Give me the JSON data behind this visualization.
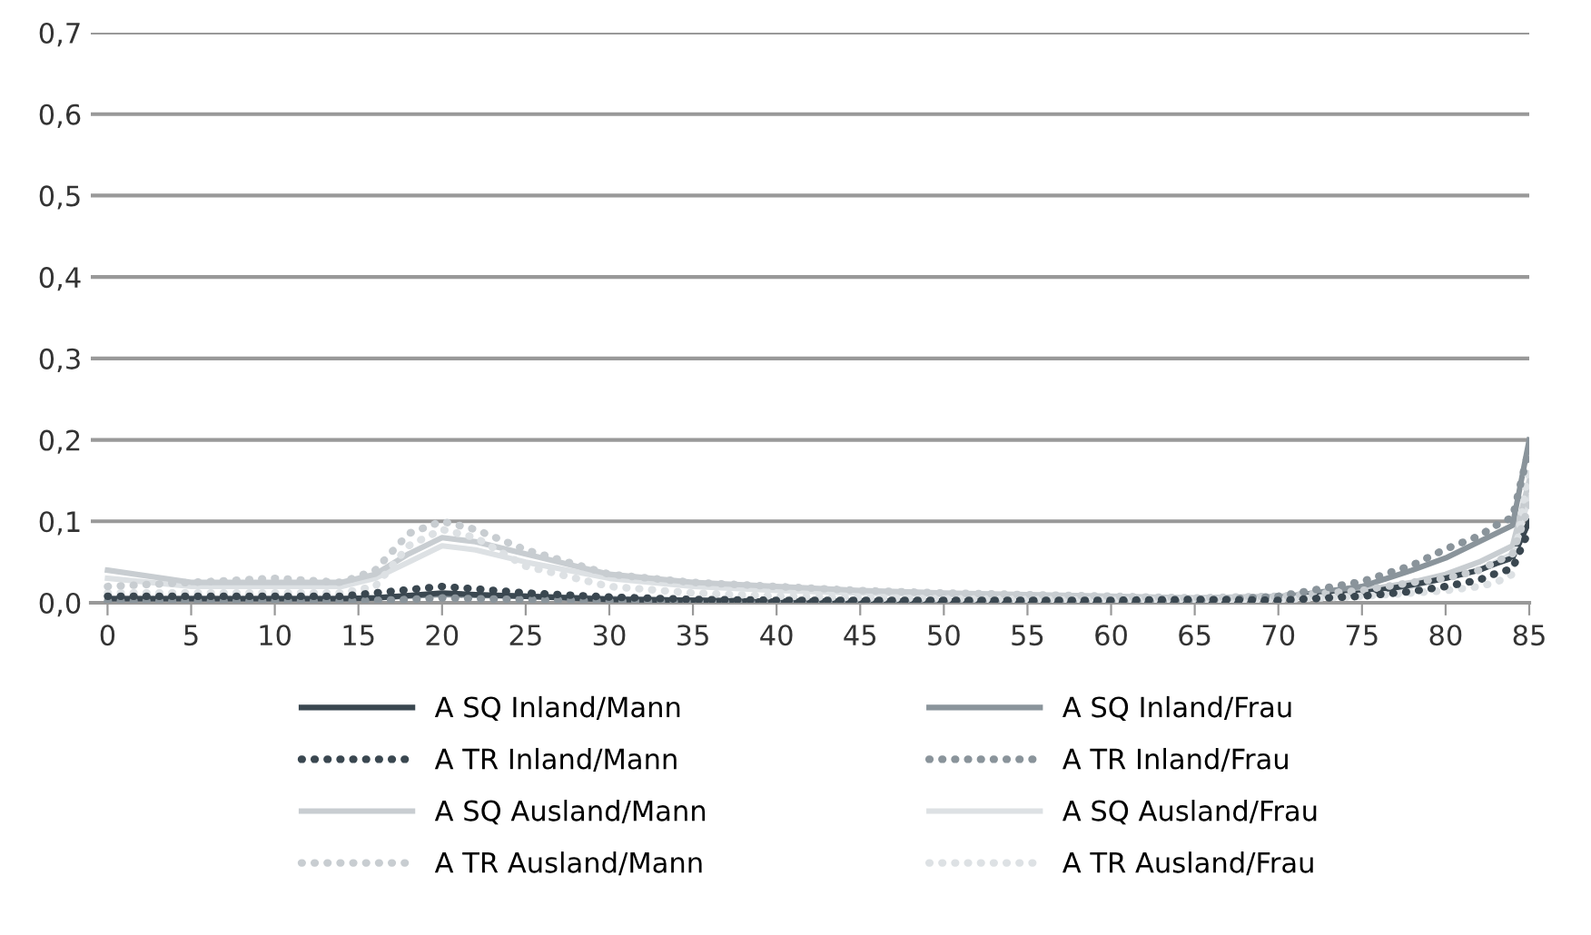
{
  "chart_data": {
    "type": "line",
    "x": [
      0,
      5,
      10,
      14,
      16,
      18,
      20,
      22,
      25,
      30,
      35,
      40,
      45,
      50,
      55,
      60,
      65,
      70,
      75,
      78,
      80,
      82,
      83,
      84,
      85
    ],
    "series": [
      {
        "name": "A SQ Inland/Mann",
        "color": "#3a4750",
        "line_style": "solid",
        "values": [
          0.005,
          0.005,
          0.005,
          0.005,
          0.006,
          0.009,
          0.012,
          0.01,
          0.008,
          0.004,
          0.003,
          0.002,
          0.002,
          0.002,
          0.002,
          0.002,
          0.002,
          0.005,
          0.012,
          0.022,
          0.03,
          0.04,
          0.048,
          0.055,
          0.1
        ]
      },
      {
        "name": "A SQ Inland/Frau",
        "color": "#8a949b",
        "line_style": "solid",
        "values": [
          0.005,
          0.005,
          0.005,
          0.005,
          0.006,
          0.008,
          0.01,
          0.009,
          0.008,
          0.005,
          0.003,
          0.002,
          0.002,
          0.002,
          0.002,
          0.002,
          0.003,
          0.006,
          0.02,
          0.04,
          0.055,
          0.075,
          0.085,
          0.095,
          0.2
        ]
      },
      {
        "name": "A TR Inland/Mann",
        "color": "#3a4750",
        "line_style": "dotted",
        "values": [
          0.008,
          0.008,
          0.008,
          0.008,
          0.012,
          0.016,
          0.02,
          0.017,
          0.012,
          0.007,
          0.004,
          0.003,
          0.003,
          0.003,
          0.003,
          0.003,
          0.004,
          0.003,
          0.008,
          0.014,
          0.02,
          0.028,
          0.036,
          0.042,
          0.09
        ]
      },
      {
        "name": "A TR Inland/Frau",
        "color": "#8a949b",
        "line_style": "dotted",
        "values": [
          0.002,
          0.002,
          0.002,
          0.002,
          0.003,
          0.004,
          0.006,
          0.005,
          0.004,
          0.002,
          0.001,
          0.001,
          0.001,
          0.001,
          0.001,
          0.001,
          0.002,
          0.008,
          0.026,
          0.046,
          0.066,
          0.082,
          0.095,
          0.105,
          0.19
        ]
      },
      {
        "name": "A SQ Ausland/Mann",
        "color": "#c8cdd1",
        "line_style": "solid",
        "values": [
          0.04,
          0.025,
          0.025,
          0.025,
          0.035,
          0.06,
          0.08,
          0.075,
          0.06,
          0.035,
          0.025,
          0.02,
          0.015,
          0.012,
          0.01,
          0.008,
          0.006,
          0.008,
          0.015,
          0.025,
          0.035,
          0.05,
          0.06,
          0.07,
          0.15
        ]
      },
      {
        "name": "A SQ Ausland/Frau",
        "color": "#dde1e4",
        "line_style": "solid",
        "values": [
          0.03,
          0.02,
          0.02,
          0.02,
          0.03,
          0.05,
          0.07,
          0.065,
          0.05,
          0.03,
          0.02,
          0.015,
          0.012,
          0.01,
          0.008,
          0.006,
          0.005,
          0.007,
          0.012,
          0.02,
          0.03,
          0.04,
          0.05,
          0.06,
          0.13
        ]
      },
      {
        "name": "A TR Ausland/Mann",
        "color": "#c8cdd1",
        "line_style": "dotted",
        "values": [
          0.02,
          0.025,
          0.03,
          0.025,
          0.04,
          0.085,
          0.1,
          0.09,
          0.065,
          0.035,
          0.025,
          0.02,
          0.015,
          0.012,
          0.01,
          0.008,
          0.006,
          0.008,
          0.015,
          0.025,
          0.03,
          0.04,
          0.05,
          0.06,
          0.12
        ]
      },
      {
        "name": "A TR Ausland/Frau",
        "color": "#dde1e4",
        "line_style": "dotted",
        "values": [
          0.012,
          0.012,
          0.012,
          0.012,
          0.02,
          0.07,
          0.09,
          0.08,
          0.045,
          0.02,
          0.012,
          0.008,
          0.006,
          0.005,
          0.004,
          0.003,
          0.003,
          0.004,
          0.008,
          0.012,
          0.015,
          0.02,
          0.025,
          0.035,
          0.17
        ]
      }
    ],
    "xlim": [
      -1,
      85
    ],
    "xticks": [
      0,
      5,
      10,
      15,
      20,
      25,
      30,
      35,
      40,
      45,
      50,
      55,
      60,
      65,
      70,
      75,
      80,
      85
    ],
    "ylim": [
      0,
      0.7
    ],
    "yticks": [
      {
        "value": 0,
        "label": "0,0"
      },
      {
        "value": 0.1,
        "label": "0,1"
      },
      {
        "value": 0.2,
        "label": "0,2"
      },
      {
        "value": 0.3,
        "label": "0,3"
      },
      {
        "value": 0.4,
        "label": "0,4"
      },
      {
        "value": 0.5,
        "label": "0,5"
      },
      {
        "value": 0.6,
        "label": "0,6"
      },
      {
        "value": 0.7,
        "label": "0,7"
      }
    ],
    "grid": "y",
    "legend": "bottom"
  }
}
